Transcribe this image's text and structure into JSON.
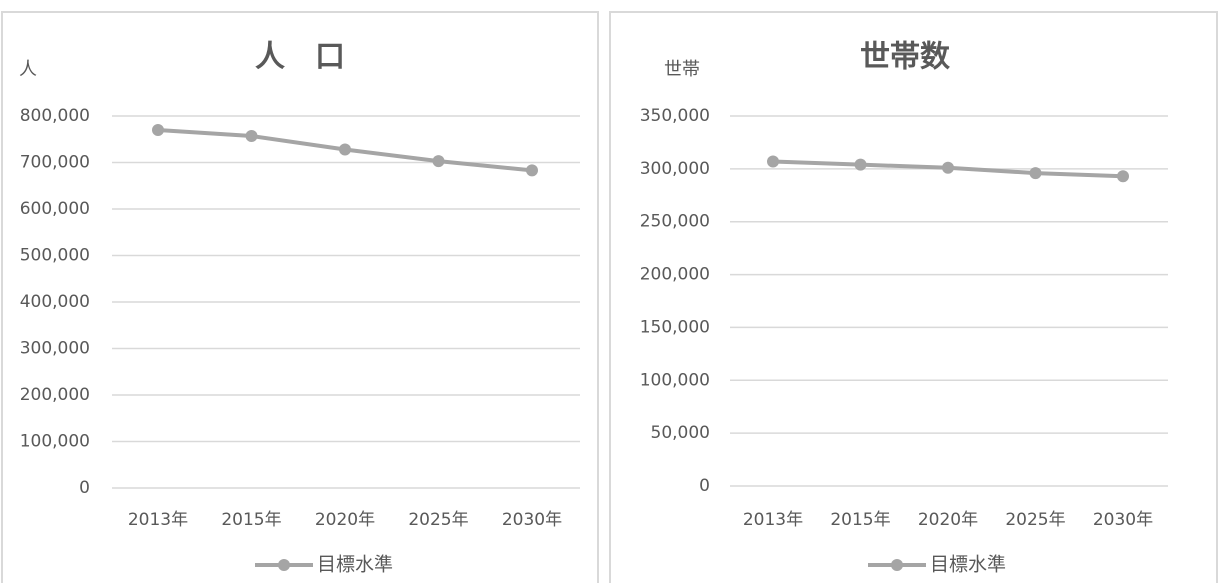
{
  "chart_data": [
    {
      "type": "line",
      "title": "人　口",
      "y_axis_label": "人",
      "categories": [
        "2013年",
        "2015年",
        "2020年",
        "2025年",
        "2030年"
      ],
      "series": [
        {
          "name": "目標水準",
          "color": "#a5a5a5",
          "values": [
            770000,
            757000,
            728000,
            703000,
            683000
          ]
        }
      ],
      "ylim": [
        0,
        800000
      ],
      "yticks": [
        0,
        {
          "value": 100000,
          "label": "100,000"
        },
        {
          "value": 200000,
          "label": "200,000"
        },
        {
          "value": 300000,
          "label": "300,000"
        },
        {
          "value": 400000,
          "label": "400,000"
        },
        {
          "value": 500000,
          "label": "500,000"
        },
        {
          "value": 600000,
          "label": "600,000"
        },
        {
          "value": 700000,
          "label": "700,000"
        },
        {
          "value": 800000,
          "label": "800,000"
        }
      ],
      "grid": true,
      "legend": "bottom"
    },
    {
      "type": "line",
      "title": "世帯数",
      "y_axis_label": "世帯",
      "categories": [
        "2013年",
        "2015年",
        "2020年",
        "2025年",
        "2030年"
      ],
      "series": [
        {
          "name": "目標水準",
          "color": "#a5a5a5",
          "values": [
            307000,
            304000,
            301000,
            296000,
            293000
          ]
        }
      ],
      "ylim": [
        0,
        350000
      ],
      "yticks": [
        0,
        {
          "value": 50000,
          "label": "50,000"
        },
        {
          "value": 100000,
          "label": "100,000"
        },
        {
          "value": 150000,
          "label": "150,000"
        },
        {
          "value": 200000,
          "label": "200,000"
        },
        {
          "value": 250000,
          "label": "250,000"
        },
        {
          "value": 300000,
          "label": "300,000"
        },
        {
          "value": 350000,
          "label": "350,000"
        }
      ],
      "grid": true,
      "legend": "bottom"
    }
  ]
}
